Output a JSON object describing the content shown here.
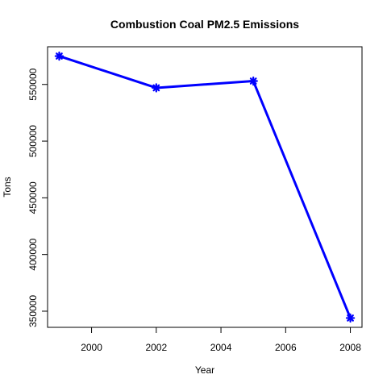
{
  "chart_data": {
    "type": "line",
    "title": "Combustion Coal PM2.5 Emissions",
    "xlabel": "Year",
    "ylabel": "Tons",
    "x": [
      1999,
      2002,
      2005,
      2008
    ],
    "series": [
      {
        "values": [
          575000,
          547000,
          553000,
          344000
        ],
        "color": "#0000ff"
      }
    ],
    "xlim": [
      1998.64,
      2008.36
    ],
    "ylim": [
      335760,
      583240
    ],
    "xticks": [
      2000,
      2002,
      2004,
      2006,
      2008
    ],
    "yticks": [
      350000,
      400000,
      450000,
      500000,
      550000
    ],
    "marker": "asterisk",
    "grid": false,
    "legend": "none"
  }
}
